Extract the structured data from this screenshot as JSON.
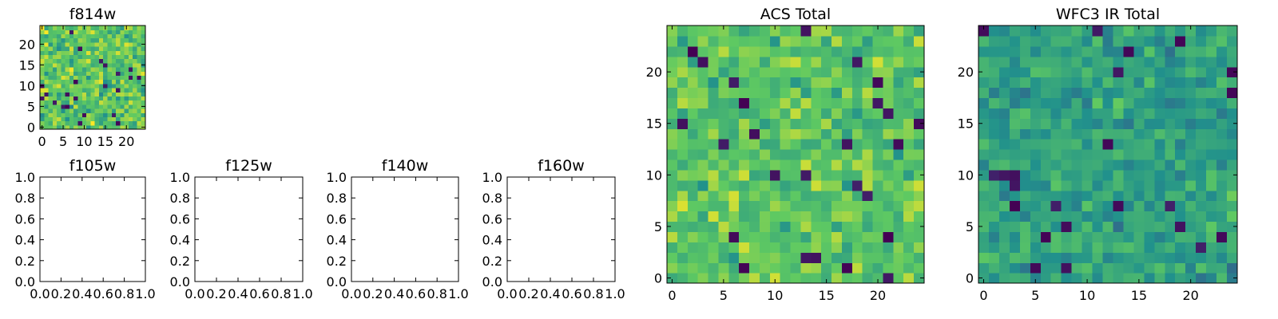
{
  "figure": {
    "background": "#ffffff"
  },
  "colormap": {
    "name": "viridis",
    "stops": [
      "#440154",
      "#3b528b",
      "#21918c",
      "#5ec962",
      "#fde725"
    ]
  },
  "chart_data": [
    {
      "id": "f814w",
      "type": "heatmap",
      "title": "f814w",
      "xlabel": "",
      "ylabel": "",
      "grid": false,
      "shape": [
        25,
        25
      ],
      "xlim": [
        -0.5,
        24.5
      ],
      "ylim": [
        -0.5,
        24.5
      ],
      "xticks": [
        "0",
        "5",
        "10",
        "15",
        "20"
      ],
      "yticks": [
        "0",
        "5",
        "10",
        "15",
        "20"
      ],
      "value_range": [
        0,
        1
      ],
      "pattern": "noise",
      "seed": 11,
      "mean": 0.74,
      "spread": 0.32
    },
    {
      "id": "f105w",
      "type": "empty",
      "title": "f105w",
      "grid": false,
      "xlim": [
        0.0,
        1.0
      ],
      "ylim": [
        0.0,
        1.0
      ],
      "xticks": [
        "0.0",
        "0.2",
        "0.4",
        "0.6",
        "0.8",
        "1.0"
      ],
      "yticks": [
        "0.0",
        "0.2",
        "0.4",
        "0.6",
        "0.8",
        "1.0"
      ]
    },
    {
      "id": "f125w",
      "type": "empty",
      "title": "f125w",
      "grid": false,
      "xlim": [
        0.0,
        1.0
      ],
      "ylim": [
        0.0,
        1.0
      ],
      "xticks": [
        "0.0",
        "0.2",
        "0.4",
        "0.6",
        "0.8",
        "1.0"
      ],
      "yticks": [
        "0.0",
        "0.2",
        "0.4",
        "0.6",
        "0.8",
        "1.0"
      ]
    },
    {
      "id": "f140w",
      "type": "empty",
      "title": "f140w",
      "grid": false,
      "xlim": [
        0.0,
        1.0
      ],
      "ylim": [
        0.0,
        1.0
      ],
      "xticks": [
        "0.0",
        "0.2",
        "0.4",
        "0.6",
        "0.8",
        "1.0"
      ],
      "yticks": [
        "0.0",
        "0.2",
        "0.4",
        "0.6",
        "0.8",
        "1.0"
      ]
    },
    {
      "id": "f160w",
      "type": "empty",
      "title": "f160w",
      "grid": false,
      "xlim": [
        0.0,
        1.0
      ],
      "ylim": [
        0.0,
        1.0
      ],
      "xticks": [
        "0.0",
        "0.2",
        "0.4",
        "0.6",
        "0.8",
        "1.0"
      ],
      "yticks": [
        "0.0",
        "0.2",
        "0.4",
        "0.6",
        "0.8",
        "1.0"
      ]
    },
    {
      "id": "acs-total",
      "type": "heatmap",
      "title": "ACS Total",
      "grid": false,
      "shape": [
        25,
        25
      ],
      "xlim": [
        -0.5,
        24.5
      ],
      "ylim": [
        -0.5,
        24.5
      ],
      "xticks": [
        "0",
        "5",
        "10",
        "15",
        "20"
      ],
      "yticks": [
        "0",
        "5",
        "10",
        "15",
        "20"
      ],
      "value_range": [
        0,
        1
      ],
      "pattern": "noise",
      "seed": 23,
      "mean": 0.73,
      "spread": 0.26
    },
    {
      "id": "wfc3-ir-total",
      "type": "heatmap",
      "title": "WFC3 IR Total",
      "grid": false,
      "shape": [
        25,
        25
      ],
      "xlim": [
        -0.5,
        24.5
      ],
      "ylim": [
        -0.5,
        24.5
      ],
      "xticks": [
        "0",
        "5",
        "10",
        "15",
        "20"
      ],
      "yticks": [
        "0",
        "5",
        "10",
        "15",
        "20"
      ],
      "value_range": [
        0,
        1
      ],
      "pattern": "noise",
      "seed": 37,
      "mean": 0.57,
      "spread": 0.24
    }
  ]
}
